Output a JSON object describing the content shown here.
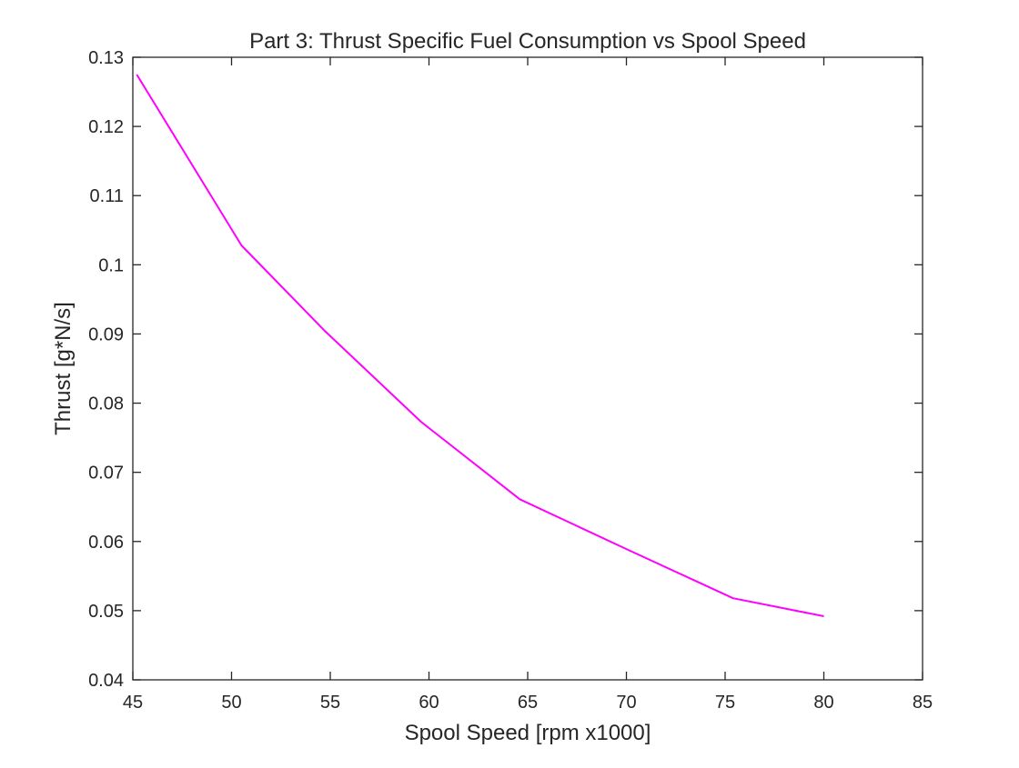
{
  "chart_data": {
    "type": "line",
    "title": "Part 3: Thrust Specific Fuel Consumption vs Spool Speed",
    "xlabel": "Spool Speed [rpm x1000]",
    "ylabel": "Thrust [g*N/s]",
    "xlim": [
      45,
      85
    ],
    "ylim": [
      0.04,
      0.13
    ],
    "xticks": [
      45,
      50,
      55,
      60,
      65,
      70,
      75,
      80,
      85
    ],
    "xtick_labels": [
      "45",
      "50",
      "55",
      "60",
      "65",
      "70",
      "75",
      "80",
      "85"
    ],
    "yticks": [
      0.04,
      0.05,
      0.06,
      0.07,
      0.08,
      0.09,
      0.1,
      0.11,
      0.12,
      0.13
    ],
    "ytick_labels": [
      "0.04",
      "0.05",
      "0.06",
      "0.07",
      "0.08",
      "0.09",
      "0.1",
      "0.11",
      "0.12",
      "0.13"
    ],
    "grid": false,
    "legend": false,
    "series": [
      {
        "color": "#ff00ff",
        "x": [
          45.2,
          50.5,
          54.7,
          59.6,
          64.6,
          70.0,
          75.4,
          80.0
        ],
        "y": [
          0.1275,
          0.1028,
          0.0905,
          0.0773,
          0.0661,
          0.0589,
          0.0518,
          0.0492
        ]
      }
    ],
    "axes_color": "#262626",
    "background": "#ffffff"
  }
}
